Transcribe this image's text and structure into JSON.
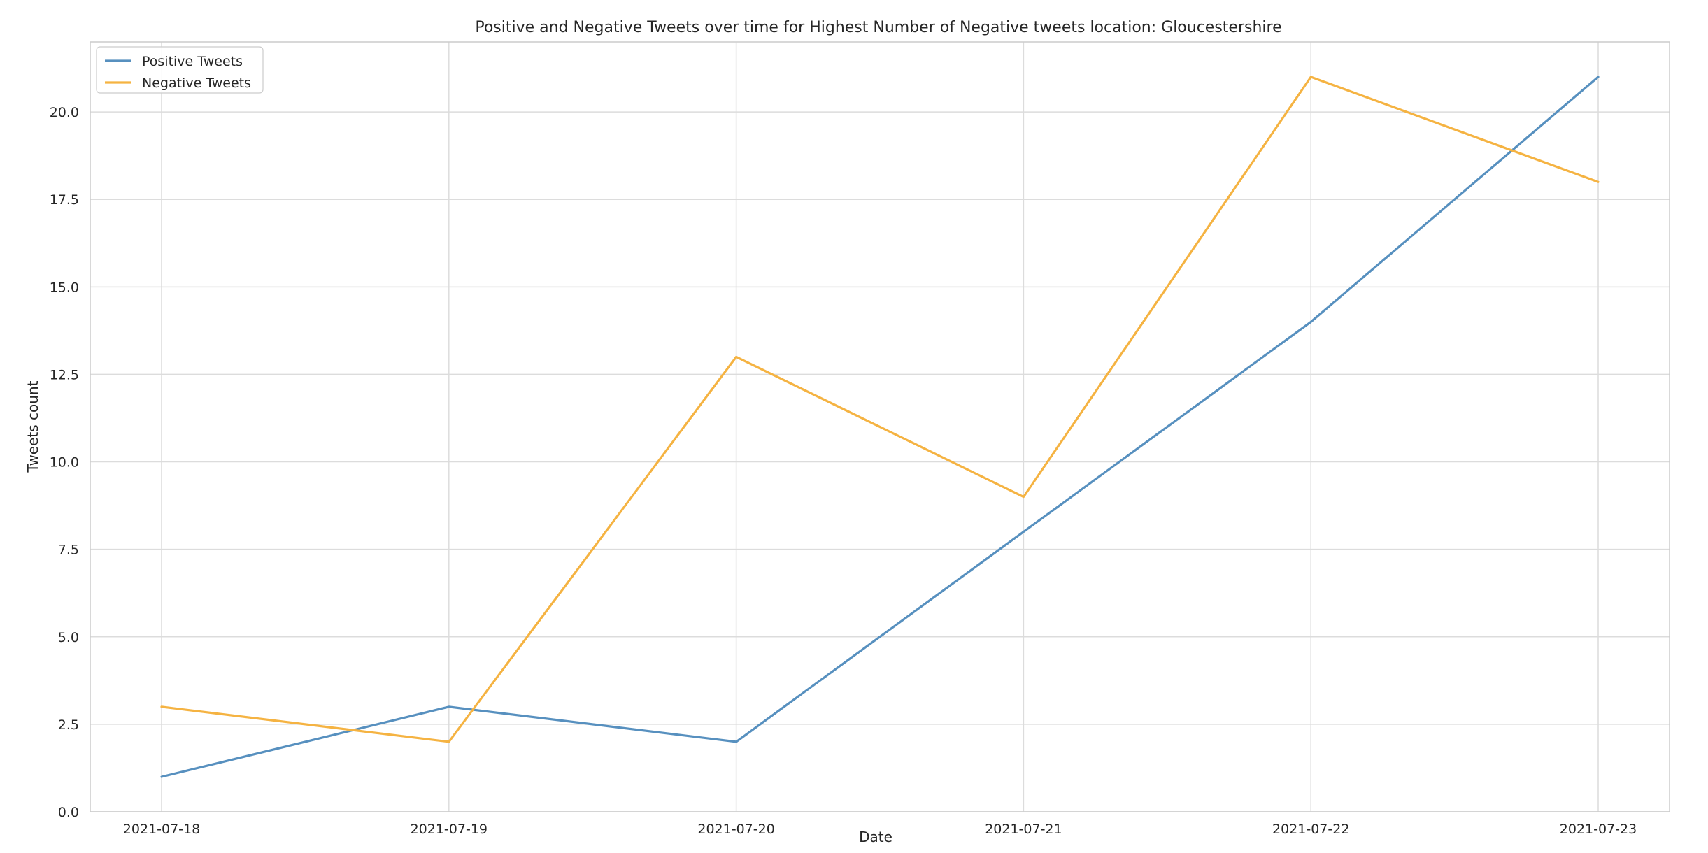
{
  "chart_data": {
    "type": "line",
    "title": "Positive and Negative Tweets over time for Highest Number of Negative tweets location: Gloucestershire",
    "xlabel": "Date",
    "ylabel": "Tweets count",
    "x": [
      "2021-07-18",
      "2021-07-19",
      "2021-07-20",
      "2021-07-21",
      "2021-07-22",
      "2021-07-23"
    ],
    "series": [
      {
        "name": "Positive Tweets",
        "values": [
          1,
          3,
          2,
          8,
          14,
          21
        ],
        "color": "#5790bf"
      },
      {
        "name": "Negative Tweets",
        "values": [
          3,
          2,
          13,
          9,
          21,
          18
        ],
        "color": "#f5b342"
      }
    ],
    "ylim": [
      0,
      22
    ],
    "yticks": [
      0.0,
      2.5,
      5.0,
      7.5,
      10.0,
      12.5,
      15.0,
      17.5,
      20.0
    ],
    "ytick_labels": [
      "0.0",
      "2.5",
      "5.0",
      "7.5",
      "10.0",
      "12.5",
      "15.0",
      "17.5",
      "20.0"
    ],
    "grid": true,
    "legend_position": "top-left"
  }
}
